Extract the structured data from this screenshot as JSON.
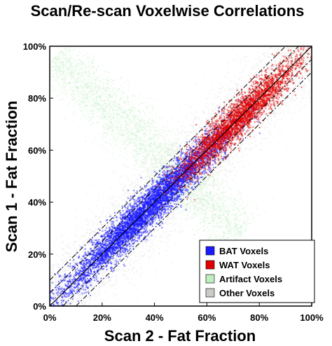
{
  "chart_data": {
    "type": "scatter",
    "title": "Scan/Re-scan Voxelwise Correlations",
    "xlabel": "Scan 2 - Fat Fraction",
    "ylabel": "Scan 1 - Fat Fraction",
    "xlim": [
      0,
      100
    ],
    "ylim": [
      0,
      100
    ],
    "x_ticks": [
      "0%",
      "20%",
      "40%",
      "60%",
      "80%",
      "100%"
    ],
    "y_ticks": [
      "0%",
      "20%",
      "40%",
      "60%",
      "80%",
      "100%"
    ],
    "grid": false,
    "legend_position": "bottom-right",
    "series": [
      {
        "name": "BAT Voxels",
        "color": "#1a1aff",
        "distribution": "band along identity",
        "x_range": [
          13,
          62
        ],
        "spread": 3.5,
        "points": 5200
      },
      {
        "name": "WAT Voxels",
        "color": "#e00000",
        "distribution": "band along identity",
        "x_range": [
          55,
          90
        ],
        "spread": 3.5,
        "points": 3200
      },
      {
        "name": "Artifact Voxels",
        "color": "#bfeebf",
        "distribution": "anti-diagonal band",
        "from": [
          2,
          96
        ],
        "to": [
          73,
          27
        ],
        "spread": 5,
        "points": 3500
      },
      {
        "name": "Other Voxels",
        "color": "#c9cbc4",
        "distribution": "wide band along identity",
        "x_range": [
          0,
          100
        ],
        "spread": 9,
        "points": 7000
      }
    ],
    "reference_lines": [
      {
        "style": "solid",
        "offset": 0
      },
      {
        "style": "dash-dot",
        "offset": -5
      },
      {
        "style": "dash-dot",
        "offset": 5
      },
      {
        "style": "dash-dot",
        "offset": -10
      },
      {
        "style": "dash-dot",
        "offset": 10
      }
    ]
  }
}
